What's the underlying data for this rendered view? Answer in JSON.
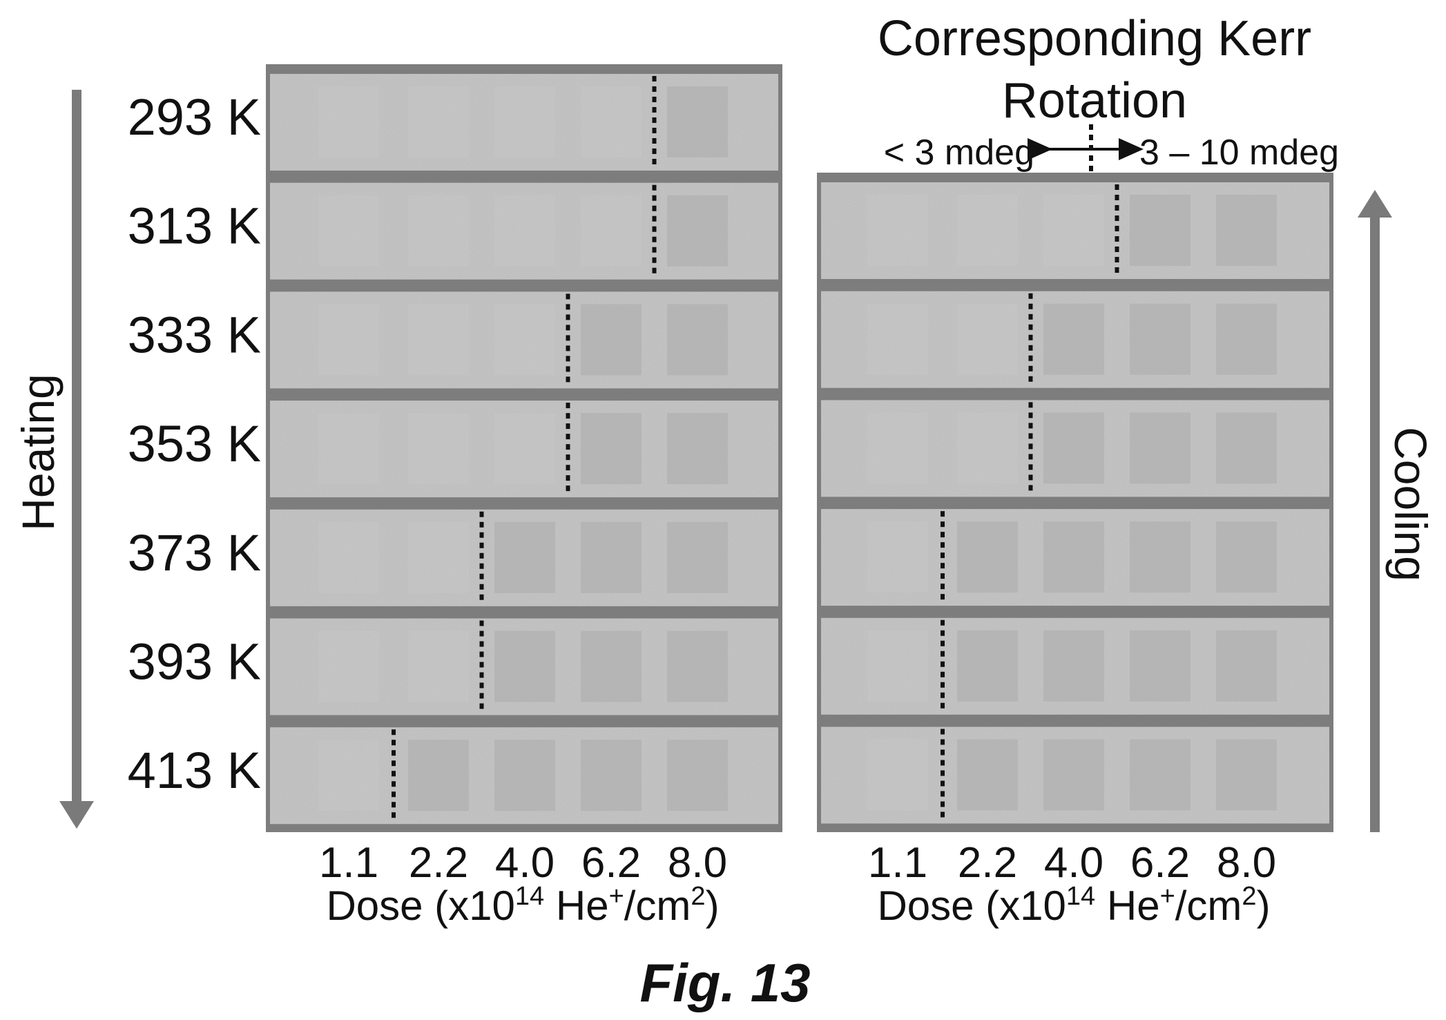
{
  "header": {
    "title_line1": "Corresponding Kerr",
    "title_line2": "Rotation",
    "left_range": "< 3 mdeg",
    "right_range": "3 – 10 mdeg"
  },
  "left_panel": {
    "side_label": "Heating",
    "arrow_direction": "down",
    "rows": [
      {
        "temperature": "293 K",
        "threshold_dose": "between 6.2 and 8.0"
      },
      {
        "temperature": "313 K",
        "threshold_dose": "between 6.2 and 8.0"
      },
      {
        "temperature": "333 K",
        "threshold_dose": "between 4.0 and 6.2"
      },
      {
        "temperature": "353 K",
        "threshold_dose": "between 4.0 and 6.2"
      },
      {
        "temperature": "373 K",
        "threshold_dose": "between 2.2 and 4.0"
      },
      {
        "temperature": "393 K",
        "threshold_dose": "between 2.2 and 4.0"
      },
      {
        "temperature": "413 K",
        "threshold_dose": "between 1.1 and 2.2"
      }
    ]
  },
  "right_panel": {
    "side_label": "Cooling",
    "arrow_direction": "up",
    "rows": [
      {
        "threshold_dose": "between 4.0 and 6.2"
      },
      {
        "threshold_dose": "between 2.2 and 4.0"
      },
      {
        "threshold_dose": "between 2.2 and 4.0"
      },
      {
        "threshold_dose": "between 1.1 and 2.2"
      },
      {
        "threshold_dose": "between 1.1 and 2.2"
      },
      {
        "threshold_dose": "between 1.1 and 2.2"
      }
    ]
  },
  "dose_ticks": [
    "1.1",
    "2.2",
    "4.0",
    "6.2",
    "8.0"
  ],
  "axis_label": {
    "prefix": "Dose (x10",
    "exp1": "14",
    "mid": " He",
    "exp2": "+",
    "unit": "/cm",
    "exp3": "2",
    "suffix": ")"
  },
  "caption": "Fig. 13",
  "colors": {
    "strip_fill": "#c6c6c6",
    "strip_border": "#7d7d7d",
    "square_fill": "#b3b3b3",
    "arrow": "#7a7a7a",
    "text": "#111111"
  }
}
